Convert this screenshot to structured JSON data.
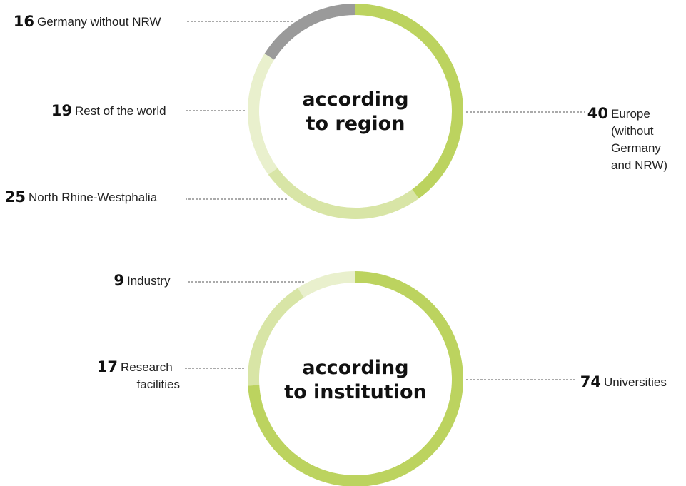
{
  "colors": {
    "dark_gray": "#9a9a9a",
    "green_strong": "#bcd35f",
    "green_mid": "#d8e5a6",
    "green_light": "#e9f0cd"
  },
  "chart_data": [
    {
      "type": "pie",
      "variant": "donut",
      "title": [
        "according",
        "to region"
      ],
      "slices": [
        {
          "label": "Europe (without Germany and NRW)",
          "label_lines": [
            "Europe",
            "(without",
            "Germany",
            "and NRW)"
          ],
          "value": 40,
          "color": "#bcd35f",
          "side": "right"
        },
        {
          "label": "North Rhine-Westphalia",
          "label_lines": [
            "North Rhine-Westphalia"
          ],
          "value": 25,
          "color": "#d8e5a6",
          "side": "left"
        },
        {
          "label": "Rest of the world",
          "label_lines": [
            "Rest of the world"
          ],
          "value": 19,
          "color": "#e9f0cd",
          "side": "left"
        },
        {
          "label": "Germany without NRW",
          "label_lines": [
            "Germany without NRW"
          ],
          "value": 16,
          "color": "#9a9a9a",
          "side": "left"
        }
      ]
    },
    {
      "type": "pie",
      "variant": "donut",
      "title": [
        "according",
        "to institution"
      ],
      "slices": [
        {
          "label": "Universities",
          "label_lines": [
            "Universities"
          ],
          "value": 74,
          "color": "#bcd35f",
          "side": "right"
        },
        {
          "label": "Research facilities",
          "label_lines": [
            "Research",
            "facilities"
          ],
          "value": 17,
          "color": "#d8e5a6",
          "side": "left"
        },
        {
          "label": "Industry",
          "label_lines": [
            "Industry"
          ],
          "value": 9,
          "color": "#e9f0cd",
          "side": "left"
        }
      ]
    }
  ]
}
